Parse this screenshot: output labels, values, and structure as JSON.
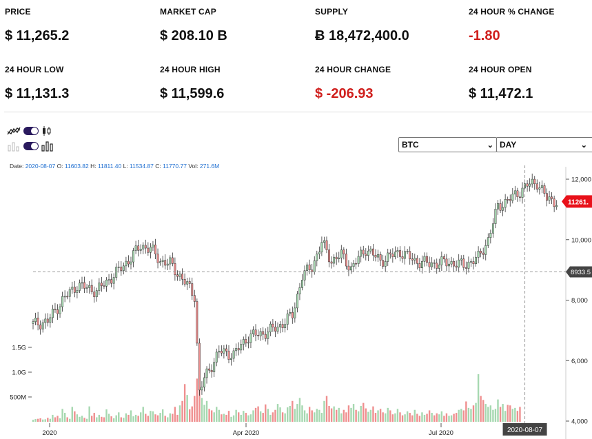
{
  "stats": [
    {
      "label": "PRICE",
      "value": "$ 11,265.2",
      "negative": false
    },
    {
      "label": "MARKET CAP",
      "value": "$ 208.10 B",
      "negative": false
    },
    {
      "label": "SUPPLY",
      "value": "Ƀ 18,472,400.0",
      "negative": false
    },
    {
      "label": "24 HOUR % CHANGE",
      "value": "-1.80",
      "negative": true
    },
    {
      "label": "24 HOUR LOW",
      "value": "$ 11,131.3",
      "negative": false
    },
    {
      "label": "24 HOUR HIGH",
      "value": "$ 11,599.6",
      "negative": false
    },
    {
      "label": "24 HOUR CHANGE",
      "value": "$ -206.93",
      "negative": true
    },
    {
      "label": "24 HOUR OPEN",
      "value": "$ 11,472.1",
      "negative": false
    }
  ],
  "controls": {
    "coin_select": "BTC",
    "interval_select": "DAY",
    "line_candle_toggle_on": true,
    "volume_toggle_on": true
  },
  "ohlc": {
    "date_label": "Date:",
    "date": "2020-08-07",
    "open_label": "O:",
    "open": "11603.82",
    "high_label": "H:",
    "high": "11811.40",
    "low_label": "L:",
    "low": "11534.87",
    "close_label": "C:",
    "close": "11770.77",
    "vol_label": "Vol:",
    "vol": "271.6M"
  },
  "chart_data": {
    "type": "candlestick",
    "y_ticks": [
      "12,000",
      "10,000",
      "8,000",
      "6,000",
      "4,000"
    ],
    "y_tick_values": [
      12000,
      10000,
      8000,
      6000,
      4000
    ],
    "vol_ticks": [
      "1.5G",
      "1.0G",
      "500M"
    ],
    "vol_tick_values": [
      1500,
      1000,
      500
    ],
    "x_ticks": [
      "2020",
      "Apr 2020",
      "Jul 2020"
    ],
    "current_price_label": "11261.",
    "crosshair_price_label": "8933.5",
    "crosshair_price": 8933.5,
    "crosshair_date_label": "2020-08-07",
    "colors": {
      "up": "#a6d8b0",
      "down": "#ef8f8f",
      "up_border": "#333333",
      "down_border": "#333333",
      "price_tag": "#e8111a",
      "crosshair_tag": "#444444"
    },
    "close_anchors": [
      [
        0,
        7200
      ],
      [
        6,
        7300
      ],
      [
        12,
        8000
      ],
      [
        18,
        8500
      ],
      [
        26,
        8300
      ],
      [
        34,
        8900
      ],
      [
        40,
        9400
      ],
      [
        44,
        9800
      ],
      [
        48,
        9700
      ],
      [
        52,
        9300
      ],
      [
        56,
        9200
      ],
      [
        62,
        8600
      ],
      [
        66,
        8150
      ],
      [
        68,
        4950
      ],
      [
        70,
        5400
      ],
      [
        76,
        6300
      ],
      [
        82,
        6200
      ],
      [
        88,
        6800
      ],
      [
        94,
        6900
      ],
      [
        100,
        7100
      ],
      [
        106,
        7500
      ],
      [
        110,
        8800
      ],
      [
        114,
        9100
      ],
      [
        118,
        9900
      ],
      [
        122,
        9300
      ],
      [
        126,
        9500
      ],
      [
        130,
        9050
      ],
      [
        136,
        9700
      ],
      [
        142,
        9300
      ],
      [
        150,
        9600
      ],
      [
        156,
        9300
      ],
      [
        162,
        9200
      ],
      [
        170,
        9250
      ],
      [
        176,
        9150
      ],
      [
        182,
        9400
      ],
      [
        186,
        10000
      ],
      [
        190,
        11100
      ],
      [
        196,
        11400
      ],
      [
        202,
        11800
      ],
      [
        206,
        11900
      ],
      [
        210,
        11350
      ],
      [
        214,
        11261
      ]
    ],
    "volumes": [
      40,
      55,
      60,
      70,
      45,
      50,
      80,
      60,
      140,
      90,
      120,
      70,
      260,
      180,
      90,
      60,
      300,
      210,
      150,
      100,
      120,
      80,
      60,
      310,
      120,
      180,
      90,
      140,
      100,
      90,
      250,
      160,
      110,
      70,
      130,
      190,
      90,
      80,
      170,
      140,
      230,
      110,
      140,
      120,
      190,
      300,
      160,
      120,
      220,
      210,
      150,
      130,
      180,
      250,
      120,
      90,
      170,
      160,
      300,
      140,
      330,
      420,
      760,
      540,
      250,
      310,
      520,
      870,
      640,
      480,
      340,
      420,
      260,
      230,
      190,
      300,
      240,
      150,
      160,
      140,
      220,
      100,
      130,
      240,
      190,
      140,
      220,
      180,
      130,
      150,
      230,
      280,
      310,
      210,
      180,
      350,
      260,
      140,
      190,
      240,
      360,
      290,
      190,
      170,
      290,
      320,
      420,
      260,
      360,
      480,
      330,
      230,
      170,
      300,
      230,
      190,
      260,
      240,
      180,
      420,
      520,
      320,
      270,
      310,
      240,
      280,
      170,
      240,
      190,
      330,
      280,
      360,
      240,
      210,
      320,
      380,
      270,
      200,
      240,
      310,
      180,
      230,
      260,
      190,
      170,
      280,
      230,
      150,
      170,
      260,
      190,
      130,
      150,
      210,
      180,
      130,
      240,
      160,
      120,
      190,
      140,
      160,
      230,
      180,
      130,
      170,
      150,
      210,
      120,
      170,
      120,
      130,
      160,
      180,
      240,
      260,
      230,
      410,
      280,
      260,
      330,
      380,
      960,
      520,
      440,
      360,
      300,
      330,
      240,
      260,
      450,
      300,
      360,
      220,
      340,
      330,
      260,
      280,
      220,
      300
    ],
    "crosshair_candle_index": 201
  }
}
